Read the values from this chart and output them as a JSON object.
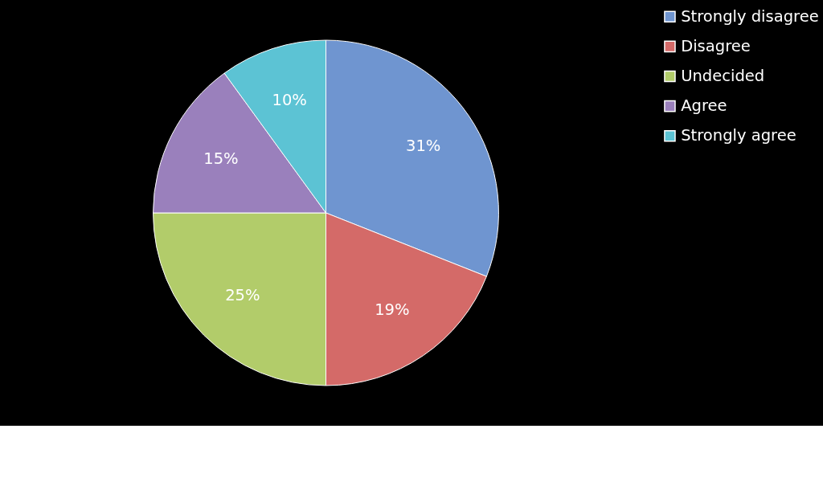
{
  "chart_data": {
    "type": "pie",
    "categories": [
      "Strongly disagree",
      "Disagree",
      "Undecided",
      "Agree",
      "Strongly agree"
    ],
    "values": [
      31,
      19,
      25,
      15,
      10
    ],
    "colors": [
      "#6f95d0",
      "#d46a68",
      "#b2cc6a",
      "#9a80bc",
      "#5cc3d4"
    ],
    "value_labels": [
      "31%",
      "19%",
      "25%",
      "15%",
      "10%"
    ],
    "legend": "right"
  }
}
